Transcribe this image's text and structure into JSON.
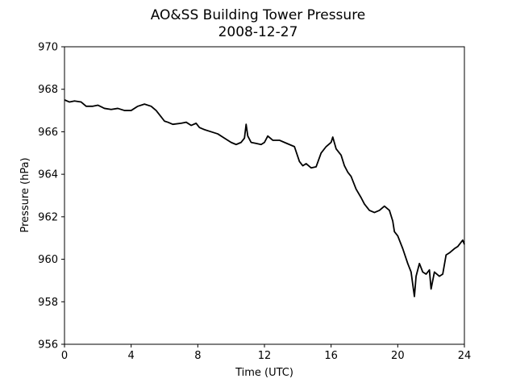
{
  "chart_data": {
    "type": "line",
    "title": "AO&SS Building Tower Pressure",
    "subtitle": "2008-12-27",
    "xlabel": "Time (UTC)",
    "ylabel": "Pressure (hPa)",
    "xlim": [
      0,
      24
    ],
    "ylim": [
      956,
      970
    ],
    "xticks": [
      0,
      4,
      8,
      12,
      16,
      20,
      24
    ],
    "yticks": [
      956,
      958,
      960,
      962,
      964,
      966,
      968,
      970
    ],
    "grid": false,
    "line_color": "#000000",
    "series": [
      {
        "x": [
          0,
          0.3,
          0.6,
          1.0,
          1.3,
          1.7,
          2.0,
          2.4,
          2.8,
          3.2,
          3.6,
          4.0,
          4.4,
          4.8,
          5.2,
          5.5,
          5.8,
          6.0,
          6.2,
          6.5,
          7.0,
          7.3,
          7.6,
          7.9,
          8.1,
          8.4,
          8.8,
          9.2,
          9.6,
          10.0,
          10.3,
          10.6,
          10.8,
          10.9,
          11.0,
          11.2,
          11.5,
          11.8,
          12.0,
          12.2,
          12.5,
          12.9,
          13.2,
          13.5,
          13.8,
          14.1,
          14.3,
          14.5,
          14.8,
          15.1,
          15.4,
          15.7,
          16.0,
          16.1,
          16.3,
          16.6,
          16.8,
          17.0,
          17.2,
          17.5,
          17.8,
          18.0,
          18.3,
          18.6,
          18.9,
          19.2,
          19.5,
          19.7,
          19.8,
          20.0,
          20.3,
          20.6,
          20.8,
          21.0,
          21.1,
          21.3,
          21.5,
          21.7,
          21.9,
          22.0,
          22.2,
          22.5,
          22.7,
          22.9,
          23.1,
          23.4,
          23.6,
          23.9,
          24.0
        ],
        "values": [
          967.5,
          967.4,
          967.45,
          967.4,
          967.2,
          967.2,
          967.25,
          967.1,
          967.05,
          967.1,
          967.0,
          967.0,
          967.2,
          967.3,
          967.2,
          967.0,
          966.7,
          966.5,
          966.45,
          966.35,
          966.4,
          966.45,
          966.3,
          966.4,
          966.2,
          966.1,
          966.0,
          965.9,
          965.7,
          965.5,
          965.4,
          965.5,
          965.7,
          966.35,
          965.8,
          965.5,
          965.45,
          965.4,
          965.5,
          965.8,
          965.6,
          965.6,
          965.5,
          965.4,
          965.3,
          964.6,
          964.4,
          964.5,
          964.3,
          964.35,
          965.0,
          965.3,
          965.5,
          965.75,
          965.2,
          964.9,
          964.4,
          964.1,
          963.9,
          963.3,
          962.9,
          962.6,
          962.3,
          962.2,
          962.3,
          962.5,
          962.3,
          961.8,
          961.3,
          961.1,
          960.5,
          959.8,
          959.4,
          958.25,
          959.2,
          959.8,
          959.4,
          959.3,
          959.5,
          958.6,
          959.4,
          959.2,
          959.3,
          960.2,
          960.3,
          960.5,
          960.6,
          960.9,
          960.7
        ]
      }
    ]
  }
}
